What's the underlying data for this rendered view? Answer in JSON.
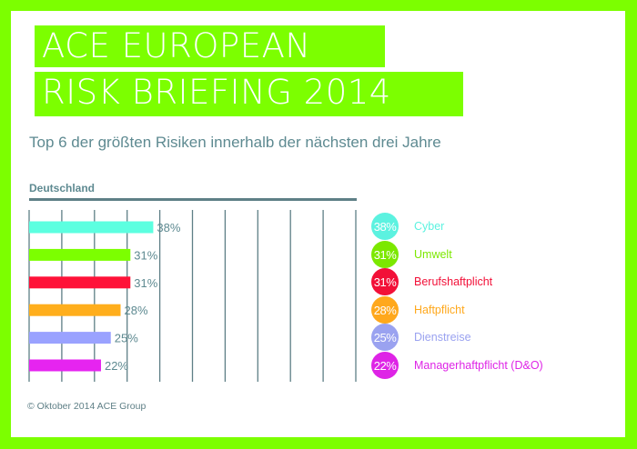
{
  "header": {
    "title_line1": "ACE EUROPEAN",
    "title_line2": "RISK BRIEFING 2014",
    "subtitle": "Top 6 der größten Risiken innerhalb der nächsten drei Jahre"
  },
  "colors": {
    "brand_green": "#7cff00",
    "text_teal": "#5e8a91",
    "grid": "#5e7f86"
  },
  "chart_data": {
    "type": "bar",
    "orientation": "horizontal",
    "title": "Deutschland",
    "categories": [
      "Cyber",
      "Umwelt",
      "Berufshaftplicht",
      "Haftpflicht",
      "Dienstreise",
      "Managerhaftpflicht (D&O)"
    ],
    "values": [
      38,
      31,
      31,
      28,
      25,
      22
    ],
    "value_labels": [
      "38%",
      "31%",
      "31%",
      "28%",
      "25%",
      "22%"
    ],
    "bar_colors": [
      "#5cffe0",
      "#7cff00",
      "#ff1238",
      "#ffae1c",
      "#9aa2ff",
      "#e624f0"
    ],
    "xlim": [
      0,
      100
    ],
    "grid_step": 10,
    "grid": true,
    "xlabel": "",
    "ylabel": "",
    "legend_position": "right"
  },
  "legend": {
    "items": [
      {
        "value": "38%",
        "label": "Cyber",
        "color": "#5cf2e0"
      },
      {
        "value": "31%",
        "label": "Umwelt",
        "color": "#7ce800"
      },
      {
        "value": "31%",
        "label": "Berufshaftplicht",
        "color": "#f21038"
      },
      {
        "value": "28%",
        "label": "Haftpflicht",
        "color": "#ffa81c"
      },
      {
        "value": "25%",
        "label": "Dienstreise",
        "color": "#9aa2f0"
      },
      {
        "value": "22%",
        "label": "Managerhaftpflicht (D&O)",
        "color": "#de24e6"
      }
    ]
  },
  "footer": {
    "copyright": "© Oktober 2014 ACE Group"
  }
}
